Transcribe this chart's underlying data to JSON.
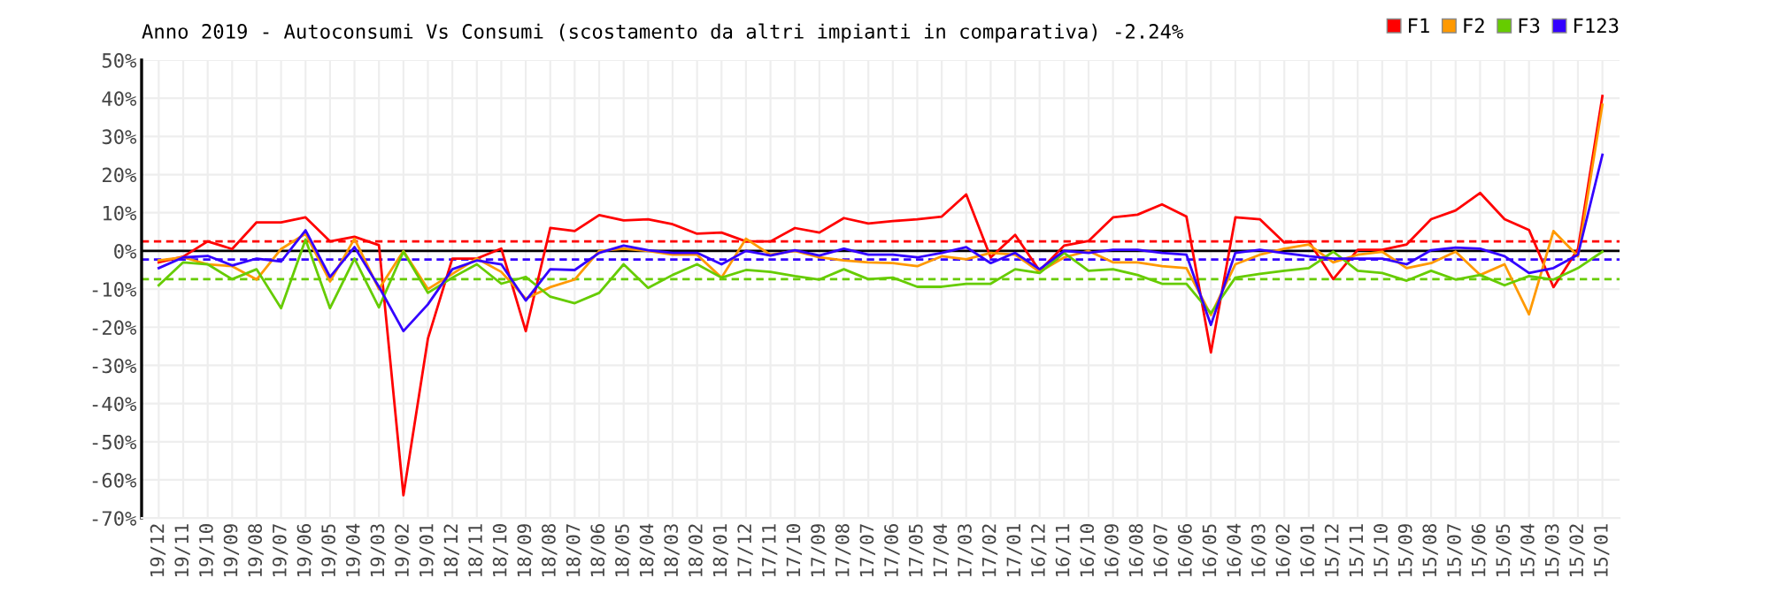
{
  "chart_data": {
    "type": "line",
    "title": "Anno 2019 - Autoconsumi Vs Consumi (scostamento da altri impianti in comparativa) -2.24%",
    "categories": [
      "19/12",
      "19/11",
      "19/10",
      "19/09",
      "19/08",
      "19/07",
      "19/06",
      "19/05",
      "19/04",
      "19/03",
      "19/02",
      "19/01",
      "18/12",
      "18/11",
      "18/10",
      "18/09",
      "18/08",
      "18/07",
      "18/06",
      "18/05",
      "18/04",
      "18/03",
      "18/02",
      "18/01",
      "17/12",
      "17/11",
      "17/10",
      "17/09",
      "17/08",
      "17/07",
      "17/06",
      "17/05",
      "17/04",
      "17/03",
      "17/02",
      "17/01",
      "16/12",
      "16/11",
      "16/10",
      "16/09",
      "16/08",
      "16/07",
      "16/06",
      "16/05",
      "16/04",
      "16/03",
      "16/02",
      "16/01",
      "15/12",
      "15/11",
      "15/10",
      "15/09",
      "15/08",
      "15/07",
      "15/06",
      "15/05",
      "15/04",
      "15/03",
      "15/02",
      "15/01"
    ],
    "series": [
      {
        "name": "F1",
        "color": "#ff0000",
        "values": [
          -3,
          -1.5,
          2.5,
          0.5,
          7.5,
          7.5,
          8.8,
          2.5,
          3.7,
          1.5,
          -64,
          -23,
          -2,
          -2,
          0.6,
          -21,
          6,
          5.2,
          9.4,
          8,
          8.3,
          7,
          4.5,
          4.8,
          2.5,
          2.5,
          6,
          4.8,
          8.6,
          7.2,
          7.8,
          8.3,
          9,
          14.8,
          -1.7,
          4.2,
          -5.2,
          1.4,
          2.6,
          8.8,
          9.5,
          12.2,
          9,
          -26.6,
          8.8,
          8.3,
          2.2,
          2.5,
          -7.4,
          0.3,
          0.3,
          1.7,
          8.3,
          10.6,
          15.2,
          8.3,
          5.5,
          -9.5,
          0.5,
          40.6
        ]
      },
      {
        "name": "F2",
        "color": "#ff9900",
        "values": [
          -2.5,
          -1.7,
          -3.5,
          -4,
          -7.5,
          0.5,
          4.5,
          -8,
          3.2,
          -10,
          0,
          -10,
          -6,
          -2,
          -5.5,
          -12.5,
          -9.5,
          -7.5,
          0,
          0.6,
          0,
          -1,
          -1,
          -7,
          3.2,
          -1,
          0,
          -1.7,
          -2.5,
          -3,
          -3.2,
          -4,
          -1.4,
          -2.2,
          -0.5,
          -1,
          -5.5,
          -1.7,
          0,
          -3,
          -3,
          -4,
          -4.5,
          -16.8,
          -3.5,
          -1,
          0.6,
          1.7,
          -3,
          -1,
          -0.2,
          -4.5,
          -3.2,
          -0.2,
          -6.3,
          -3.5,
          -16.6,
          5.2,
          -1.4,
          38.3
        ]
      },
      {
        "name": "F3",
        "color": "#66cc00",
        "values": [
          -9,
          -3,
          -3.5,
          -7.4,
          -4.8,
          -15,
          3,
          -15,
          -2,
          -14.8,
          -0.2,
          -11,
          -7,
          -3.5,
          -8.6,
          -6.8,
          -12,
          -13.7,
          -11,
          -3.5,
          -9.7,
          -6.3,
          -3.5,
          -7,
          -5,
          -5.5,
          -6.6,
          -7.5,
          -4.8,
          -7.4,
          -7,
          -9.4,
          -9.4,
          -8.6,
          -8.6,
          -4.8,
          -5.8,
          -0.5,
          -5.2,
          -4.8,
          -6.3,
          -8.6,
          -8.6,
          -16.3,
          -7,
          -6,
          -5.2,
          -4.5,
          -0.2,
          -5.2,
          -5.8,
          -7.8,
          -5.2,
          -7.5,
          -6.3,
          -9,
          -6.6,
          -7.5,
          -4.5,
          -0.2
        ]
      },
      {
        "name": "F123",
        "color": "#3300ff",
        "values": [
          -4.5,
          -1.7,
          -1.3,
          -3.8,
          -2,
          -2.8,
          5.4,
          -6.8,
          1,
          -9.4,
          -21,
          -14,
          -4.8,
          -2.5,
          -3.5,
          -13,
          -4.8,
          -5,
          -0.5,
          1.4,
          0.2,
          -0.5,
          -0.5,
          -3.5,
          0,
          -1.2,
          0.2,
          -1.2,
          0.6,
          -1,
          -1,
          -1.7,
          -0.5,
          1,
          -3.2,
          -0.5,
          -4.8,
          0,
          -0.5,
          0.3,
          0.3,
          -0.5,
          -1,
          -19.4,
          -0.5,
          0.3,
          -0.6,
          -1.4,
          -2,
          -2,
          -2,
          -3.5,
          0.2,
          0.9,
          0.6,
          -1.4,
          -5.8,
          -4.5,
          -1,
          25.2
        ]
      }
    ],
    "ylim": [
      -70,
      50
    ],
    "yticks": [
      {
        "value": -70,
        "label": "-70%"
      },
      {
        "value": -60,
        "label": "-60%"
      },
      {
        "value": -50,
        "label": "-50%"
      },
      {
        "value": -40,
        "label": "-40%"
      },
      {
        "value": -30,
        "label": "-30%"
      },
      {
        "value": -20,
        "label": "-20%"
      },
      {
        "value": -10,
        "label": "-10%"
      },
      {
        "value": 0,
        "label": "0%"
      },
      {
        "value": 10,
        "label": "10%"
      },
      {
        "value": 20,
        "label": "20%"
      },
      {
        "value": 30,
        "label": "30%"
      },
      {
        "value": 40,
        "label": "40%"
      },
      {
        "value": 50,
        "label": "50%"
      }
    ],
    "ref_lines": [
      {
        "axis": "y",
        "value": 0,
        "color": "#000000",
        "line_style": "solid"
      },
      {
        "axis": "y",
        "value": 2.5,
        "color": "#ff0000",
        "line_style": "dashed"
      },
      {
        "axis": "y",
        "value": -2.24,
        "color": "#3300ff",
        "line_style": "dashed"
      },
      {
        "axis": "y",
        "value": -7.4,
        "color": "#66cc00",
        "line_style": "dashed"
      }
    ],
    "grid": true,
    "legend": "top right",
    "marker": "none",
    "line_style": "solid"
  }
}
